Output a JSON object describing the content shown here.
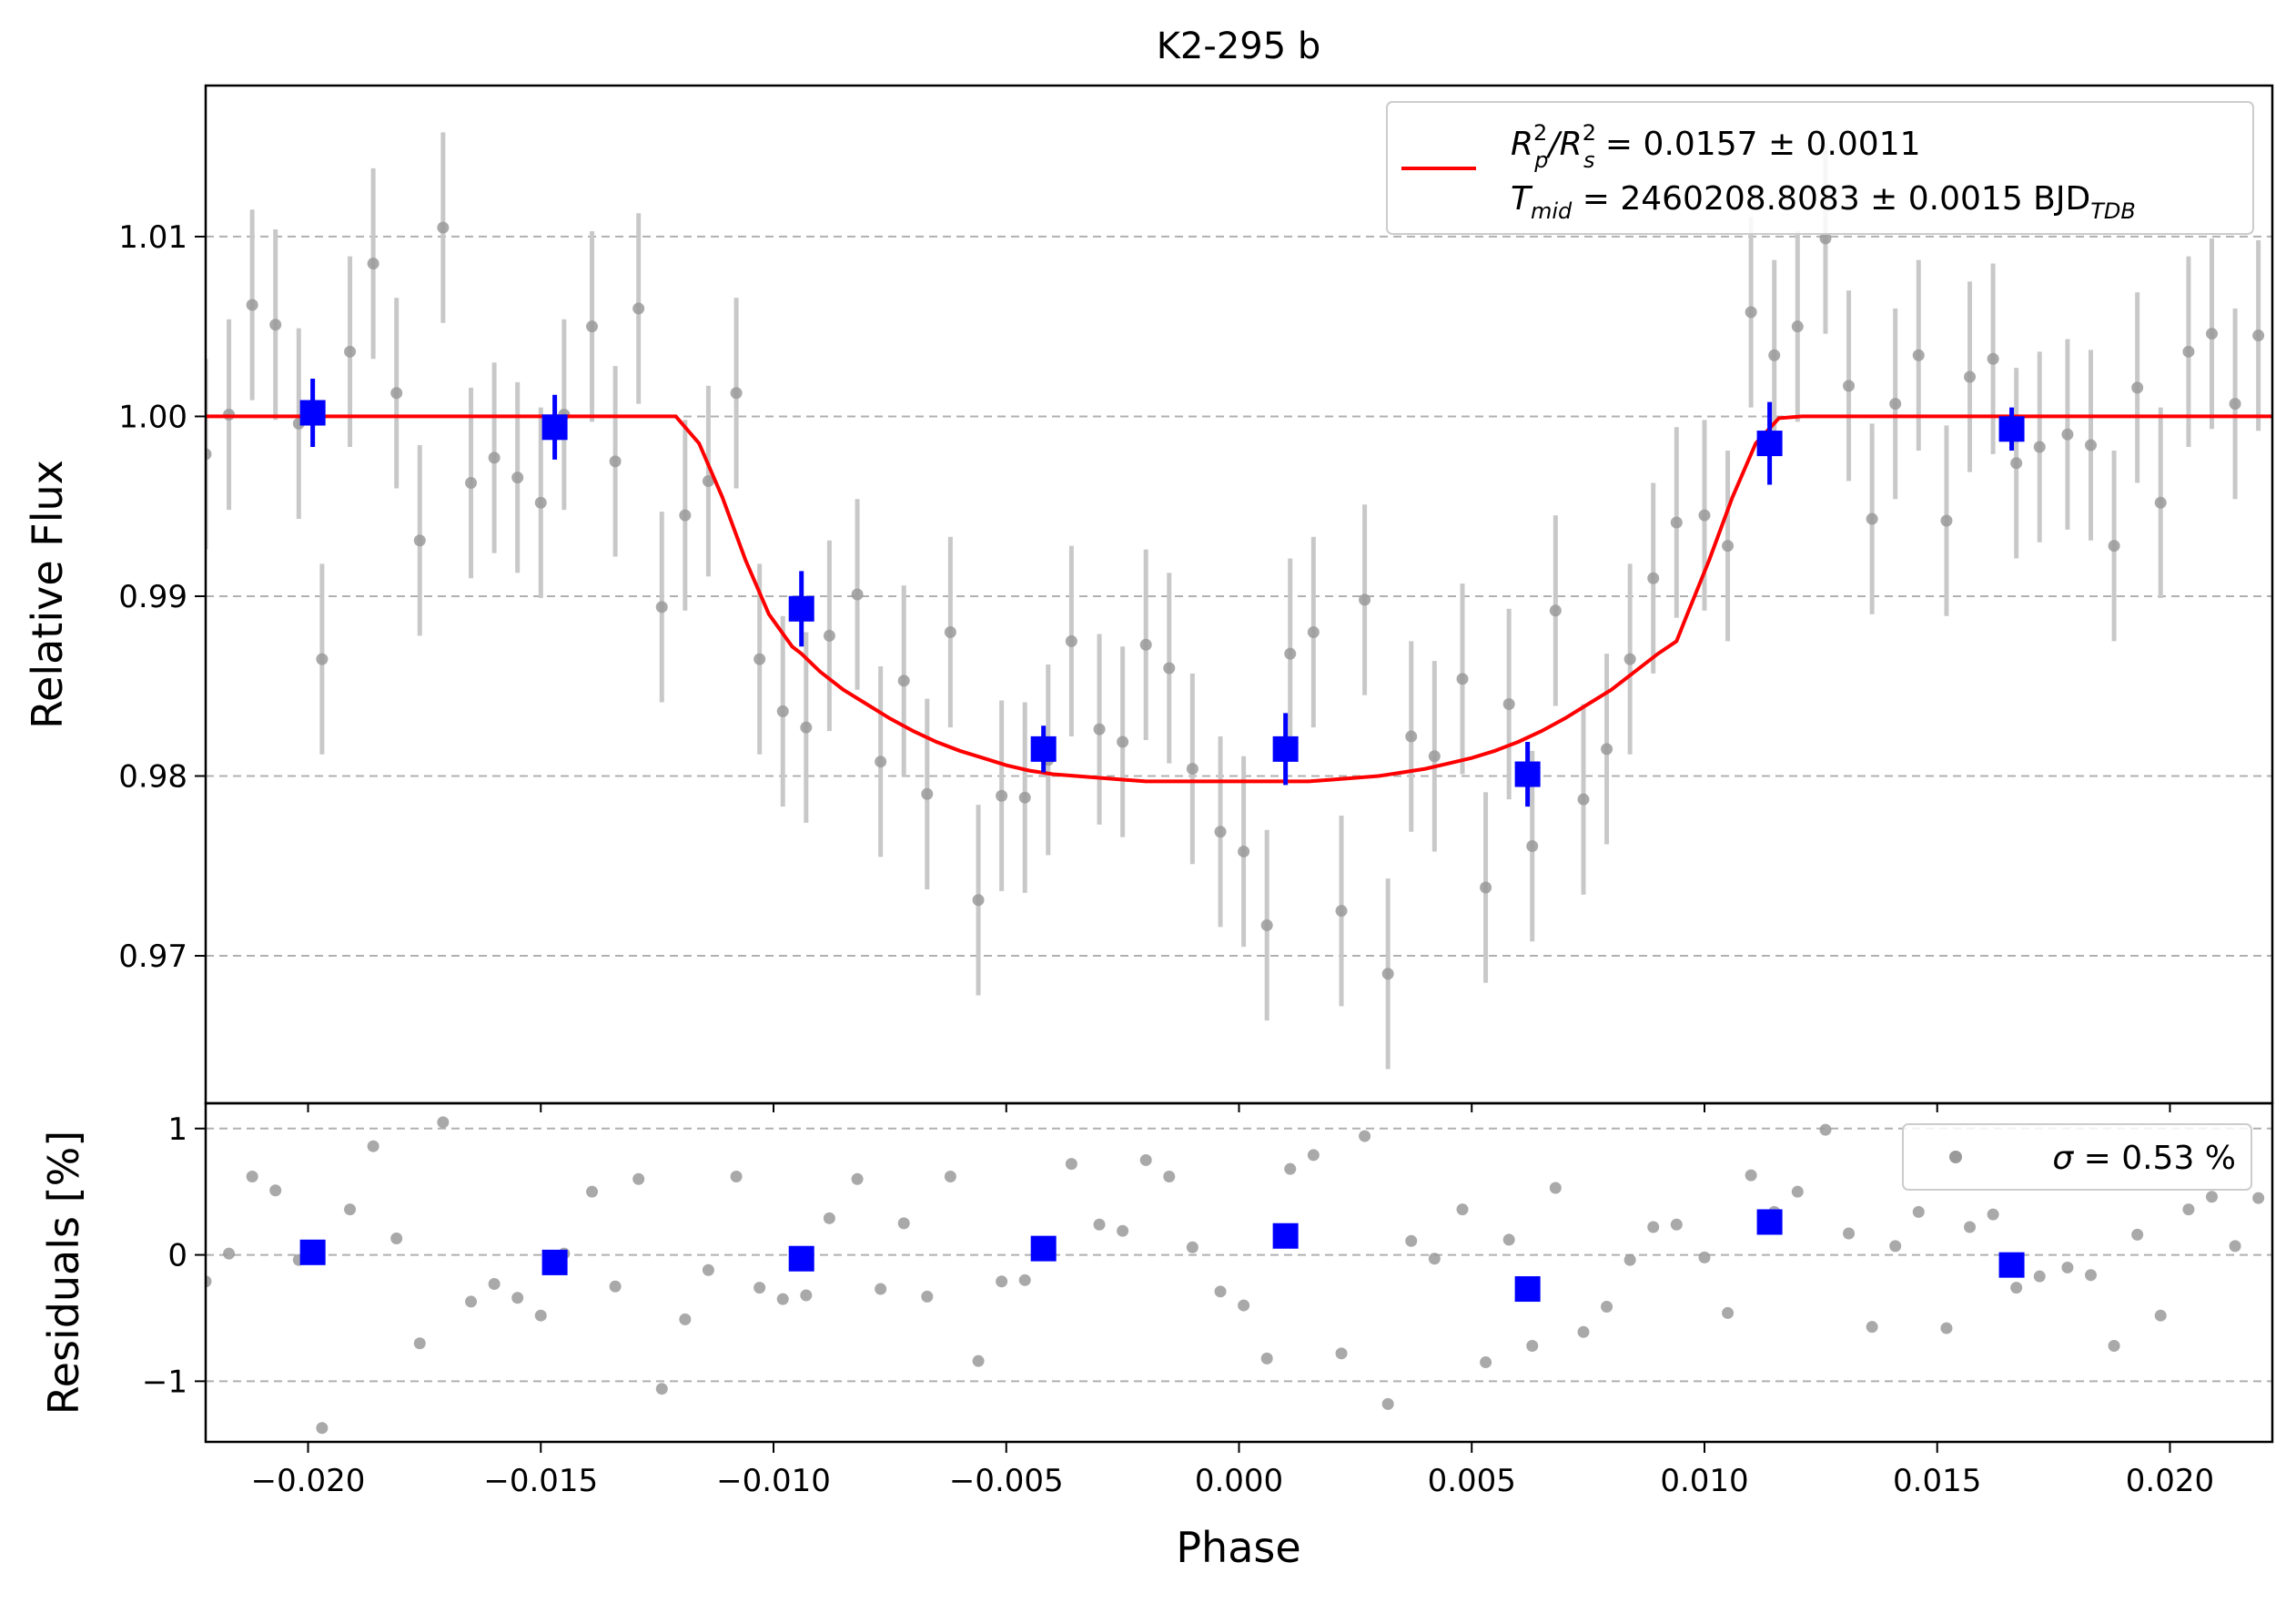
{
  "colors": {
    "model": "#ff0000",
    "binned": "#0000ff",
    "raw": "#9a9a9a",
    "raw_errorbar": "#c8c8c8",
    "grid": "#b0b0b0"
  },
  "chart_data": [
    {
      "type": "scatter",
      "panel": "light-curve",
      "title": "K2-295 b",
      "xlabel": "",
      "ylabel": "Relative Flux",
      "xlim": [
        -0.0222,
        0.0222
      ],
      "ylim": [
        0.9618,
        1.0184
      ],
      "grid": "y-dashed",
      "x_ticks": [
        -0.02,
        -0.015,
        -0.01,
        -0.005,
        0.0,
        0.005,
        0.01,
        0.015,
        0.02
      ],
      "y_ticks": [
        0.97,
        0.98,
        0.99,
        1.0,
        1.01
      ],
      "y_tick_labels": [
        "0.97",
        "0.98",
        "0.99",
        "1.00",
        "1.01"
      ],
      "legend": {
        "placement": "top-right",
        "entries": [
          {
            "series": "model",
            "line1": {
              "r": "R",
              "p_sup": "2",
              "p_sub": "p",
              "sep": "/",
              "s": "R",
              "s_sup": "2",
              "s_sub": "s",
              "value": " = 0.0157 ± 0.0011"
            },
            "line2": {
              "t": "T",
              "t_sub": "mid",
              "value": " = 2460208.8083 ± 0.0015 BJD",
              "unit_sub": "TDB"
            }
          }
        ]
      },
      "series": [
        {
          "name": "raw",
          "style": "gray points with error bars",
          "x": [
            -0.0222,
            -0.0217,
            -0.0212,
            -0.0207,
            -0.0202,
            -0.0197,
            -0.0191,
            -0.0186,
            -0.0181,
            -0.0176,
            -0.0171,
            -0.0165,
            -0.016,
            -0.0155,
            -0.015,
            -0.0145,
            -0.0139,
            -0.0134,
            -0.0129,
            -0.0124,
            -0.0119,
            -0.0114,
            -0.0108,
            -0.0103,
            -0.0098,
            -0.0093,
            -0.0088,
            -0.0082,
            -0.0077,
            -0.0072,
            -0.0067,
            -0.0062,
            -0.0056,
            -0.0051,
            -0.0046,
            -0.0041,
            -0.0036,
            -0.003,
            -0.0025,
            -0.002,
            -0.0015,
            -0.001,
            -0.0004,
            0.0001,
            0.0006,
            0.0011,
            0.0016,
            0.0022,
            0.0027,
            0.0032,
            0.0037,
            0.0042,
            0.0048,
            0.0053,
            0.0058,
            0.0063,
            0.0068,
            0.0074,
            0.0079,
            0.0084,
            0.0089,
            0.0094,
            0.01,
            0.0105,
            0.011,
            0.0115,
            0.012,
            0.0126,
            0.0131,
            0.0136,
            0.0141,
            0.0146,
            0.0152,
            0.0157,
            0.0162,
            0.0167,
            0.0172,
            0.0178,
            0.0183,
            0.0188,
            0.0193,
            0.0198,
            0.0204,
            0.0209,
            0.0214,
            0.0219,
            0.0224
          ],
          "y": [
            0.9979,
            1.0001,
            1.0062,
            1.0051,
            0.9996,
            0.9865,
            1.0036,
            1.0085,
            1.0013,
            0.9931,
            1.0105,
            0.9963,
            0.9977,
            0.9966,
            0.9952,
            1.0001,
            1.005,
            0.9975,
            1.006,
            0.9894,
            0.9945,
            0.9964,
            1.0013,
            0.9865,
            0.9836,
            0.9827,
            0.9878,
            0.9901,
            0.9808,
            0.9853,
            0.979,
            0.988,
            0.9731,
            0.9789,
            0.9788,
            0.9809,
            0.9875,
            0.9826,
            0.9819,
            0.9873,
            0.986,
            0.9804,
            0.9769,
            0.9758,
            0.9717,
            0.9868,
            0.988,
            0.9725,
            0.9898,
            0.969,
            0.9822,
            0.9811,
            0.9854,
            0.9738,
            0.984,
            0.9761,
            0.9892,
            0.9787,
            0.9815,
            0.9865,
            0.991,
            0.9941,
            0.9945,
            0.9928,
            1.0058,
            1.0034,
            1.005,
            1.0099,
            1.0017,
            0.9943,
            1.0007,
            1.0034,
            0.9942,
            1.0022,
            1.0032,
            0.9974,
            0.9983,
            0.999,
            0.9984,
            0.9928,
            1.0016,
            0.9952,
            1.0036,
            1.0046,
            1.0007,
            1.0045,
            1.001
          ],
          "err": 0.0053
        },
        {
          "name": "binned",
          "style": "blue squares with error bars",
          "x": [
            -0.0199,
            -0.0147,
            -0.0094,
            -0.0042,
            0.001,
            0.0062,
            0.0114,
            0.0166
          ],
          "y": [
            1.0002,
            0.9994,
            0.9893,
            0.9815,
            0.9815,
            0.9801,
            0.9985,
            0.9993
          ],
          "err": [
            0.0019,
            0.0018,
            0.0021,
            0.0013,
            0.002,
            0.0018,
            0.0023,
            0.0012
          ]
        },
        {
          "name": "model",
          "style": "red line",
          "x": [
            -0.0222,
            -0.0121,
            -0.0116,
            -0.0111,
            -0.0106,
            -0.0101,
            -0.0096,
            -0.0094,
            -0.009,
            -0.0085,
            -0.008,
            -0.0075,
            -0.007,
            -0.0065,
            -0.006,
            -0.0055,
            -0.005,
            -0.0045,
            -0.004,
            -0.0035,
            -0.003,
            -0.0025,
            -0.002,
            -0.0015,
            -0.001,
            -0.0005,
            0.0,
            0.0005,
            0.001,
            0.0015,
            0.002,
            0.0025,
            0.003,
            0.0035,
            0.004,
            0.0045,
            0.005,
            0.0055,
            0.006,
            0.0065,
            0.007,
            0.0075,
            0.008,
            0.0085,
            0.009,
            0.0094,
            0.0096,
            0.0101,
            0.0106,
            0.0111,
            0.0116,
            0.0121,
            0.0222
          ],
          "y": [
            1.0,
            1.0,
            0.9985,
            0.9955,
            0.992,
            0.989,
            0.9872,
            0.9868,
            0.9858,
            0.9848,
            0.984,
            0.9832,
            0.9825,
            0.9819,
            0.9814,
            0.981,
            0.9806,
            0.9803,
            0.9801,
            0.98,
            0.9799,
            0.9798,
            0.9797,
            0.9797,
            0.9797,
            0.9797,
            0.9797,
            0.9797,
            0.9797,
            0.9797,
            0.9798,
            0.9799,
            0.98,
            0.9802,
            0.9804,
            0.9807,
            0.981,
            0.9814,
            0.9819,
            0.9825,
            0.9832,
            0.984,
            0.9848,
            0.9858,
            0.9868,
            0.9875,
            0.9888,
            0.992,
            0.9955,
            0.9985,
            0.9999,
            1.0,
            1.0
          ]
        }
      ]
    },
    {
      "type": "scatter",
      "panel": "residuals",
      "xlabel": "Phase",
      "ylabel": "Residuals [%]",
      "xlim": [
        -0.0222,
        0.0222
      ],
      "ylim": [
        -1.48,
        1.2
      ],
      "grid": "y-dashed",
      "x_ticks": [
        -0.02,
        -0.015,
        -0.01,
        -0.005,
        0.0,
        0.005,
        0.01,
        0.015,
        0.02
      ],
      "x_tick_labels": [
        "−0.020",
        "−0.015",
        "−0.010",
        "−0.005",
        "0.000",
        "0.005",
        "0.010",
        "0.015",
        "0.020"
      ],
      "y_ticks": [
        -1,
        0,
        1
      ],
      "y_tick_labels": [
        "−1",
        "0",
        "1"
      ],
      "legend": {
        "placement": "top-right",
        "entries": [
          {
            "series": "raw",
            "sigma": "σ",
            "value": " = 0.53 %"
          }
        ]
      },
      "series": [
        {
          "name": "raw",
          "style": "gray points",
          "x": [
            -0.0222,
            -0.0217,
            -0.0212,
            -0.0207,
            -0.0202,
            -0.0197,
            -0.0191,
            -0.0186,
            -0.0181,
            -0.0176,
            -0.0171,
            -0.0165,
            -0.016,
            -0.0155,
            -0.015,
            -0.0145,
            -0.0139,
            -0.0134,
            -0.0129,
            -0.0124,
            -0.0119,
            -0.0114,
            -0.0108,
            -0.0103,
            -0.0098,
            -0.0093,
            -0.0088,
            -0.0082,
            -0.0077,
            -0.0072,
            -0.0067,
            -0.0062,
            -0.0056,
            -0.0051,
            -0.0046,
            -0.0041,
            -0.0036,
            -0.003,
            -0.0025,
            -0.002,
            -0.0015,
            -0.001,
            -0.0004,
            0.0001,
            0.0006,
            0.0011,
            0.0016,
            0.0022,
            0.0027,
            0.0032,
            0.0037,
            0.0042,
            0.0048,
            0.0053,
            0.0058,
            0.0063,
            0.0068,
            0.0074,
            0.0079,
            0.0084,
            0.0089,
            0.0094,
            0.01,
            0.0105,
            0.011,
            0.0115,
            0.012,
            0.0126,
            0.0131,
            0.0136,
            0.0141,
            0.0146,
            0.0152,
            0.0157,
            0.0162,
            0.0167,
            0.0172,
            0.0178,
            0.0183,
            0.0188,
            0.0193,
            0.0198,
            0.0204,
            0.0209,
            0.0214,
            0.0219,
            0.0224
          ],
          "y": [
            -0.21,
            0.01,
            0.62,
            0.51,
            -0.04,
            -1.37,
            0.36,
            0.86,
            0.13,
            -0.7,
            1.05,
            -0.37,
            -0.23,
            -0.34,
            -0.48,
            0.01,
            0.5,
            -0.25,
            0.6,
            -1.06,
            -0.51,
            -0.12,
            0.62,
            -0.26,
            -0.35,
            -0.32,
            0.29,
            0.6,
            -0.27,
            0.25,
            -0.33,
            0.62,
            -0.84,
            -0.21,
            -0.2,
            0.03,
            0.72,
            0.24,
            0.19,
            0.75,
            0.62,
            0.06,
            -0.29,
            -0.4,
            -0.82,
            0.68,
            0.79,
            -0.78,
            0.94,
            -1.18,
            0.11,
            -0.03,
            0.36,
            -0.85,
            0.12,
            -0.72,
            0.53,
            -0.61,
            -0.41,
            -0.04,
            0.22,
            0.24,
            -0.02,
            -0.46,
            0.63,
            0.34,
            0.5,
            0.99,
            0.17,
            -0.57,
            0.07,
            0.34,
            -0.58,
            0.22,
            0.32,
            -0.26,
            -0.17,
            -0.1,
            -0.16,
            -0.72,
            0.16,
            -0.48,
            0.36,
            0.46,
            0.07,
            0.45,
            0.1
          ]
        },
        {
          "name": "binned",
          "style": "blue squares",
          "x": [
            -0.0199,
            -0.0147,
            -0.0094,
            -0.0042,
            0.001,
            0.0062,
            0.0114,
            0.0166
          ],
          "y": [
            0.02,
            -0.06,
            -0.03,
            0.05,
            0.15,
            -0.27,
            0.26,
            -0.08
          ]
        }
      ]
    }
  ]
}
